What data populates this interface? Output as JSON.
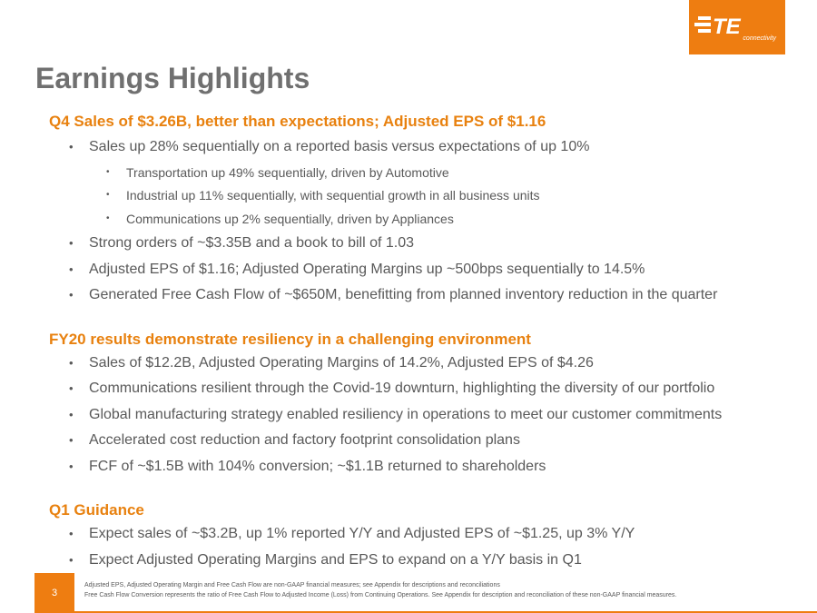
{
  "logo": {
    "mark": "TE",
    "word": "connectivity",
    "color": "#ee7d11"
  },
  "title": "Earnings Highlights",
  "sections": [
    {
      "heading": "Q4 Sales of $3.26B, better than expectations; Adjusted EPS of $1.16",
      "bullets": [
        {
          "text": "Sales up 28% sequentially on a reported basis versus expectations of up 10%",
          "sub": [
            "Transportation up 49% sequentially, driven by Automotive",
            "Industrial up 11% sequentially, with sequential growth in all business units",
            "Communications up 2% sequentially, driven by Appliances"
          ]
        },
        {
          "text": "Strong orders of ~$3.35B and a book to bill of 1.03"
        },
        {
          "text": "Adjusted EPS of $1.16; Adjusted Operating Margins up ~500bps sequentially to 14.5%"
        },
        {
          "text": "Generated Free Cash Flow of ~$650M, benefitting from planned inventory reduction in the quarter"
        }
      ]
    },
    {
      "heading": "FY20 results demonstrate resiliency in a challenging environment",
      "bullets": [
        {
          "text": "Sales of $12.2B, Adjusted Operating Margins of 14.2%, Adjusted EPS of $4.26"
        },
        {
          "text": "Communications resilient through the Covid-19 downturn, highlighting the diversity of our portfolio"
        },
        {
          "text": "Global manufacturing strategy enabled resiliency in operations to meet our customer commitments"
        },
        {
          "text": "Accelerated cost reduction and factory footprint consolidation plans"
        },
        {
          "text": "FCF of ~$1.5B with 104% conversion; ~$1.1B returned to shareholders"
        }
      ]
    },
    {
      "heading": "Q1 Guidance",
      "bullets": [
        {
          "text": "Expect sales of ~$3.2B, up 1% reported Y/Y and Adjusted EPS of ~$1.25, up 3% Y/Y"
        },
        {
          "text": "Expect Adjusted Operating Margins and EPS to expand on a Y/Y basis in Q1"
        }
      ]
    }
  ],
  "bullet_char": "•",
  "footer": {
    "page_number": "3",
    "notes": [
      "Adjusted EPS, Adjusted Operating Margin and Free Cash Flow are non-GAAP financial measures; see Appendix for descriptions and reconciliations",
      "Free Cash Flow Conversion represents the ratio of Free Cash Flow to Adjusted Income (Loss) from Continuing Operations. See Appendix for description and reconciliation of these non-GAAP financial measures."
    ]
  }
}
